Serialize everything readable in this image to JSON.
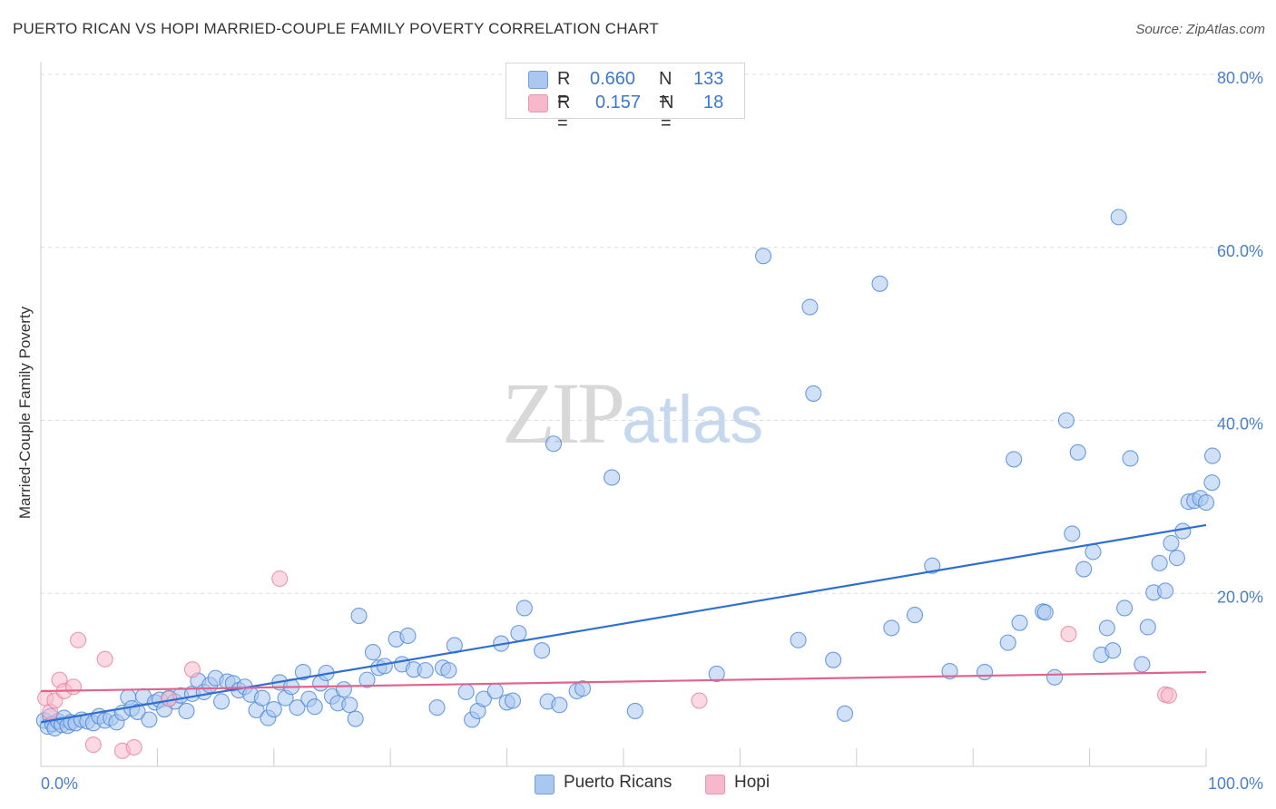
{
  "title": "PUERTO RICAN VS HOPI MARRIED-COUPLE FAMILY POVERTY CORRELATION CHART",
  "source": "Source: ZipAtlas.com",
  "watermark": {
    "zip": "ZIP",
    "atlas": "atlas"
  },
  "legend": {
    "rows": [
      {
        "r_label": "R =",
        "r_value": "0.660",
        "n_label": "N =",
        "n_value": "133",
        "color": "#a9c7ef"
      },
      {
        "r_label": "R =",
        "r_value": "0.157",
        "n_label": "N =",
        "n_value": "18",
        "color": "#f6b9cb"
      }
    ]
  },
  "bottom_legend": [
    {
      "label": "Puerto Ricans",
      "color": "#a9c7ef"
    },
    {
      "label": "Hopi",
      "color": "#f6b9cb"
    }
  ],
  "chart_data": {
    "type": "scatter",
    "title": "PUERTO RICAN VS HOPI MARRIED-COUPLE FAMILY POVERTY CORRELATION CHART",
    "xlabel": "",
    "ylabel": "Married-Couple Family Poverty",
    "xlim": [
      0,
      100
    ],
    "ylim": [
      0,
      80
    ],
    "x_tick_labels": [
      "0.0%",
      "100.0%"
    ],
    "y_ticks": [
      20,
      40,
      60,
      80
    ],
    "y_tick_labels": [
      "20.0%",
      "40.0%",
      "60.0%",
      "80.0%"
    ],
    "grid": true,
    "series": [
      {
        "name": "Puerto Ricans",
        "color": "#4a86d9",
        "fill": "#a9c7ef",
        "trend": {
          "x": [
            0,
            100
          ],
          "y": [
            5.1,
            27.9
          ],
          "color": "#2f6fd0"
        },
        "points": [
          [
            0.3,
            5.3
          ],
          [
            0.6,
            4.6
          ],
          [
            0.8,
            5.8
          ],
          [
            1.0,
            4.9
          ],
          [
            1.2,
            4.4
          ],
          [
            1.5,
            5.2
          ],
          [
            1.8,
            4.8
          ],
          [
            2.0,
            5.6
          ],
          [
            2.3,
            4.7
          ],
          [
            2.6,
            5.1
          ],
          [
            3.0,
            5.0
          ],
          [
            3.5,
            5.4
          ],
          [
            4.0,
            5.2
          ],
          [
            4.5,
            5.0
          ],
          [
            5.0,
            5.8
          ],
          [
            5.5,
            5.3
          ],
          [
            6.0,
            5.6
          ],
          [
            6.5,
            5.1
          ],
          [
            7.0,
            6.2
          ],
          [
            7.5,
            8.0
          ],
          [
            7.8,
            6.7
          ],
          [
            8.3,
            6.3
          ],
          [
            8.8,
            8.1
          ],
          [
            9.3,
            5.4
          ],
          [
            9.8,
            7.4
          ],
          [
            10.2,
            7.7
          ],
          [
            10.6,
            6.6
          ],
          [
            11.0,
            7.9
          ],
          [
            11.5,
            7.5
          ],
          [
            12.0,
            8.2
          ],
          [
            12.5,
            6.4
          ],
          [
            13.0,
            8.4
          ],
          [
            13.5,
            9.9
          ],
          [
            14.0,
            8.6
          ],
          [
            14.5,
            9.4
          ],
          [
            15.0,
            10.2
          ],
          [
            15.5,
            7.5
          ],
          [
            16.0,
            9.8
          ],
          [
            16.5,
            9.6
          ],
          [
            17.0,
            8.8
          ],
          [
            17.5,
            9.2
          ],
          [
            18.0,
            8.3
          ],
          [
            18.5,
            6.5
          ],
          [
            19.0,
            7.9
          ],
          [
            19.5,
            5.6
          ],
          [
            20.0,
            6.6
          ],
          [
            20.5,
            9.7
          ],
          [
            21.0,
            7.9
          ],
          [
            21.5,
            9.2
          ],
          [
            22.0,
            6.8
          ],
          [
            22.5,
            10.9
          ],
          [
            23.0,
            7.8
          ],
          [
            23.5,
            6.9
          ],
          [
            24.0,
            9.6
          ],
          [
            24.5,
            10.8
          ],
          [
            25.0,
            8.1
          ],
          [
            25.5,
            7.3
          ],
          [
            26.0,
            8.9
          ],
          [
            26.5,
            7.1
          ],
          [
            27.0,
            5.5
          ],
          [
            27.3,
            17.4
          ],
          [
            28.0,
            10.0
          ],
          [
            28.5,
            13.2
          ],
          [
            29.0,
            11.4
          ],
          [
            29.5,
            11.6
          ],
          [
            30.5,
            14.7
          ],
          [
            31.0,
            11.8
          ],
          [
            31.5,
            15.1
          ],
          [
            32.0,
            11.2
          ],
          [
            33.0,
            11.1
          ],
          [
            34.0,
            6.8
          ],
          [
            34.5,
            11.4
          ],
          [
            35.0,
            11.1
          ],
          [
            35.5,
            14.0
          ],
          [
            36.5,
            8.6
          ],
          [
            37.0,
            5.4
          ],
          [
            37.5,
            6.4
          ],
          [
            38.0,
            7.8
          ],
          [
            39.0,
            8.7
          ],
          [
            39.5,
            14.2
          ],
          [
            40.0,
            7.4
          ],
          [
            40.5,
            7.6
          ],
          [
            41.0,
            15.4
          ],
          [
            41.5,
            18.3
          ],
          [
            43.0,
            13.4
          ],
          [
            43.5,
            7.5
          ],
          [
            44.0,
            37.3
          ],
          [
            44.5,
            7.1
          ],
          [
            46.0,
            8.7
          ],
          [
            46.5,
            9.0
          ],
          [
            49.0,
            33.4
          ],
          [
            51.0,
            6.4
          ],
          [
            58.0,
            10.7
          ],
          [
            62.0,
            59.0
          ],
          [
            65.0,
            14.6
          ],
          [
            66.0,
            53.1
          ],
          [
            66.3,
            43.1
          ],
          [
            68.0,
            12.3
          ],
          [
            69.0,
            6.1
          ],
          [
            72.0,
            55.8
          ],
          [
            73.0,
            16.0
          ],
          [
            75.0,
            17.5
          ],
          [
            76.5,
            23.2
          ],
          [
            78.0,
            11.0
          ],
          [
            81.0,
            10.9
          ],
          [
            83.0,
            14.3
          ],
          [
            83.5,
            35.5
          ],
          [
            84.0,
            16.6
          ],
          [
            86.0,
            17.9
          ],
          [
            86.2,
            17.8
          ],
          [
            87.0,
            10.3
          ],
          [
            88.0,
            40.0
          ],
          [
            88.5,
            26.9
          ],
          [
            89.0,
            36.3
          ],
          [
            89.5,
            22.8
          ],
          [
            90.3,
            24.8
          ],
          [
            91.0,
            12.9
          ],
          [
            91.5,
            16.0
          ],
          [
            92.0,
            13.4
          ],
          [
            92.5,
            63.5
          ],
          [
            93.0,
            18.3
          ],
          [
            93.5,
            35.6
          ],
          [
            94.5,
            11.8
          ],
          [
            95.0,
            16.1
          ],
          [
            95.5,
            20.1
          ],
          [
            96.0,
            23.5
          ],
          [
            96.5,
            20.3
          ],
          [
            97.0,
            25.8
          ],
          [
            97.5,
            24.1
          ],
          [
            98.0,
            27.2
          ],
          [
            98.5,
            30.6
          ],
          [
            99.0,
            30.7
          ],
          [
            99.5,
            31.0
          ],
          [
            100.0,
            30.5
          ],
          [
            100.5,
            32.8
          ],
          [
            101.0,
            35.9
          ]
        ]
      },
      {
        "name": "Hopi",
        "color": "#e87fa0",
        "fill": "#f6b9cb",
        "trend": {
          "x": [
            0,
            100
          ],
          "y": [
            8.7,
            10.9
          ],
          "color": "#e0648d"
        },
        "points": [
          [
            0.4,
            7.9
          ],
          [
            0.8,
            6.3
          ],
          [
            1.2,
            7.6
          ],
          [
            1.6,
            10.0
          ],
          [
            2.0,
            8.7
          ],
          [
            2.8,
            9.2
          ],
          [
            3.2,
            14.6
          ],
          [
            4.5,
            2.5
          ],
          [
            5.5,
            12.4
          ],
          [
            7.0,
            1.8
          ],
          [
            8.0,
            2.2
          ],
          [
            11.0,
            7.8
          ],
          [
            13.0,
            11.2
          ],
          [
            20.5,
            21.7
          ],
          [
            56.5,
            7.6
          ],
          [
            88.2,
            15.3
          ],
          [
            96.5,
            8.3
          ],
          [
            96.8,
            8.2
          ]
        ]
      }
    ]
  }
}
